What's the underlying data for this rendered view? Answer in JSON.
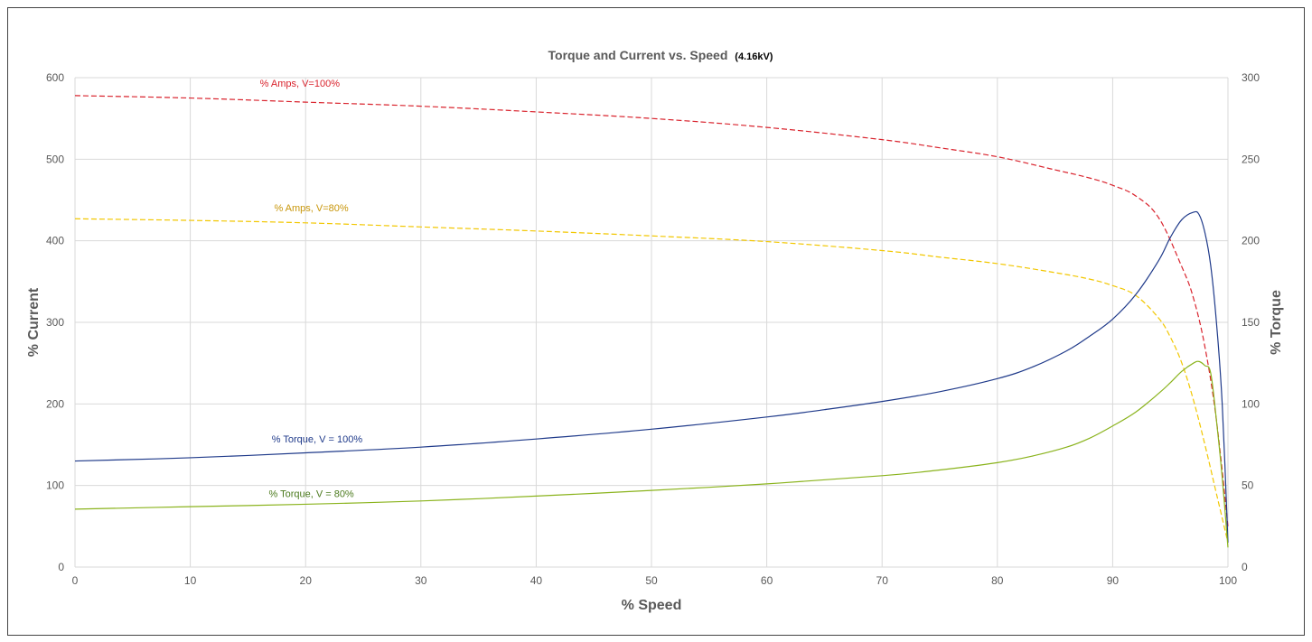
{
  "chart_data": {
    "type": "line",
    "title": "Torque and Current vs. Speed",
    "title_suffix": "(4.16kV)",
    "xlabel": "% Speed",
    "ylabel_left": "% Current",
    "ylabel_right": "% Torque",
    "xlim": [
      0,
      100
    ],
    "ylim_left": [
      0,
      600
    ],
    "ylim_right": [
      0,
      300
    ],
    "x_ticks": [
      "0",
      "10",
      "20",
      "30",
      "40",
      "50",
      "60",
      "70",
      "80",
      "90",
      "100"
    ],
    "y_left_ticks": [
      "0",
      "100",
      "200",
      "300",
      "400",
      "500",
      "600"
    ],
    "y_right_ticks": [
      "0",
      "50",
      "100",
      "150",
      "200",
      "250",
      "300"
    ],
    "grid": true,
    "series": [
      {
        "name": "% Amps, V=100%",
        "axis": "left",
        "color": "#d9232d",
        "dash": true,
        "x": [
          0,
          10,
          20,
          30,
          40,
          50,
          60,
          70,
          75,
          80,
          85,
          88,
          90,
          92,
          94,
          96,
          97,
          98,
          99,
          100
        ],
        "y": [
          578,
          575,
          570,
          565,
          558,
          550,
          539,
          524,
          514,
          503,
          487,
          477,
          468,
          455,
          428,
          368,
          330,
          270,
          180,
          50
        ]
      },
      {
        "name": "% Amps, V=80%",
        "axis": "left",
        "color": "#f2c700",
        "dash": true,
        "x": [
          0,
          10,
          20,
          30,
          40,
          50,
          60,
          70,
          75,
          80,
          85,
          88,
          90,
          92,
          94,
          95,
          96,
          97,
          98,
          99,
          100
        ],
        "y": [
          427,
          425,
          422,
          417,
          412,
          406,
          399,
          388,
          380,
          372,
          361,
          353,
          345,
          333,
          305,
          282,
          250,
          205,
          150,
          90,
          30
        ]
      },
      {
        "name": "% Torque, V = 100%",
        "axis": "right",
        "color": "#1f3a8a",
        "dash": false,
        "x": [
          0,
          10,
          20,
          30,
          40,
          50,
          60,
          65,
          70,
          75,
          80,
          83,
          86,
          88,
          90,
          92,
          94,
          95,
          96,
          97,
          97.5,
          98,
          98.5,
          99,
          99.5,
          100
        ],
        "y": [
          65,
          67,
          70,
          73.5,
          78.5,
          84.5,
          92,
          96.5,
          101.5,
          107.5,
          115.5,
          122.5,
          132.5,
          141.5,
          152,
          167,
          188,
          202,
          213,
          217.5,
          216,
          205,
          185,
          150,
          100,
          15
        ]
      },
      {
        "name": "% Torque, V = 80%",
        "axis": "right",
        "color": "#8ab31c",
        "dash": false,
        "x": [
          0,
          10,
          20,
          30,
          40,
          50,
          60,
          70,
          75,
          80,
          83,
          86,
          88,
          90,
          92,
          94,
          95,
          96,
          97,
          97.5,
          98,
          98.5,
          99,
          99.5,
          100
        ],
        "y": [
          35.5,
          37,
          38.5,
          40.5,
          43.5,
          47,
          51,
          56,
          59.5,
          64,
          68,
          73.5,
          79,
          86.5,
          95,
          106.5,
          113,
          120,
          125,
          126,
          123.5,
          119,
          90,
          55,
          12
        ]
      }
    ],
    "annotations": [
      {
        "text": "% Amps, V=100%",
        "color": "#d9232d",
        "x": 19.5,
        "y": 589,
        "axis": "left"
      },
      {
        "text": "% Amps, V=80%",
        "color": "#c8960a",
        "x": 20.5,
        "y": 436,
        "axis": "left"
      },
      {
        "text": "% Torque, V = 100%",
        "color": "#1f3a8a",
        "x": 21,
        "y": 153,
        "axis": "left"
      },
      {
        "text": "% Torque, V = 80%",
        "color": "#4b7a1d",
        "x": 20.5,
        "y": 86,
        "axis": "left"
      }
    ]
  }
}
